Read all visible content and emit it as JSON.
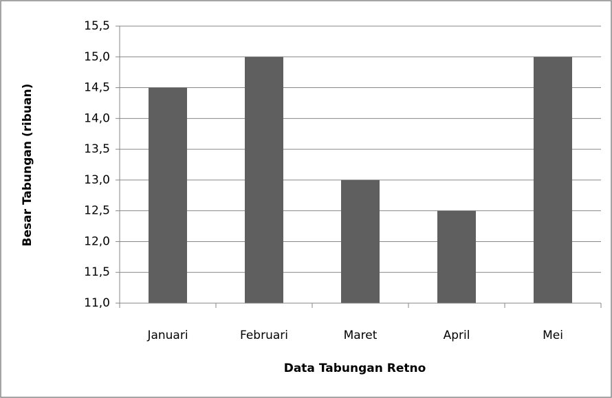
{
  "chart_data": {
    "type": "bar",
    "x_label": "Data Tabungan Retno",
    "y_label": "Besar Tabungan (ribuan)",
    "categories": [
      "Januari",
      "Februari",
      "Maret",
      "April",
      "Mei"
    ],
    "values": [
      14.5,
      15,
      13,
      12.5,
      15
    ],
    "color": "#5f5f5f",
    "ylim": [
      11,
      15.5
    ],
    "yticks": [
      {
        "value": 11,
        "label": "11,0"
      },
      {
        "value": 11.5,
        "label": "11,5"
      },
      {
        "value": 12,
        "label": "12,0"
      },
      {
        "value": 12.5,
        "label": "12,5"
      },
      {
        "value": 13,
        "label": "13,0"
      },
      {
        "value": 13.5,
        "label": "13,5"
      },
      {
        "value": 14,
        "label": "14,0"
      },
      {
        "value": 14.5,
        "label": "14,5"
      },
      {
        "value": 15,
        "label": "15,0"
      },
      {
        "value": 15.5,
        "label": "15,5"
      }
    ],
    "grid": true
  }
}
